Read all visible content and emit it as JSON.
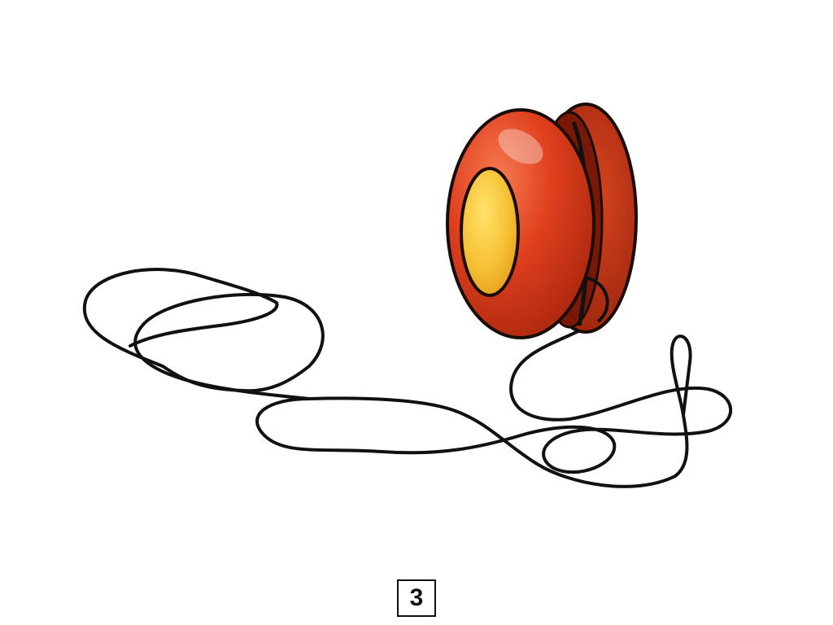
{
  "illustration": {
    "subject_icon": "yoyo-icon",
    "colors": {
      "body": "#e0401e",
      "body_dark": "#b52a10",
      "center_cap": "#f2b92e",
      "center_highlight": "#ffdf5c",
      "string": "#111111",
      "outline": "#1a0c08"
    }
  },
  "label": {
    "number": "3"
  }
}
